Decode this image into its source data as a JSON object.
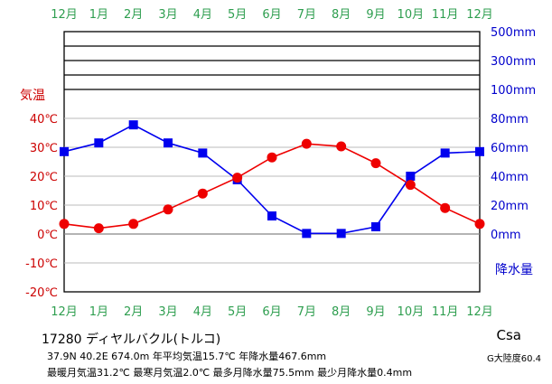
{
  "chart_data": {
    "type": "line",
    "categories": [
      "12月",
      "1月",
      "2月",
      "3月",
      "4月",
      "5月",
      "6月",
      "7月",
      "8月",
      "9月",
      "10月",
      "11月",
      "12月"
    ],
    "series": [
      {
        "name": "気温",
        "values": [
          3.5,
          2.0,
          3.5,
          8.5,
          14.0,
          19.5,
          26.5,
          31.2,
          30.3,
          24.5,
          17.0,
          9.0,
          3.5
        ],
        "color": "#ee0000"
      },
      {
        "name": "降水量",
        "values": [
          57.0,
          63.0,
          75.5,
          63.0,
          56.0,
          37.5,
          12.5,
          0.4,
          0.4,
          5.0,
          40.0,
          56.0,
          57.0
        ],
        "color": "#0000ee"
      }
    ],
    "temp_axis": {
      "label": "気温",
      "ticks": [
        "40℃",
        "30℃",
        "20℃",
        "10℃",
        "0℃",
        "-10℃",
        "-20℃"
      ],
      "ylim": [
        -20,
        40
      ]
    },
    "precip_axis": {
      "label": "降水量",
      "ticks": [
        "0mm",
        "20mm",
        "40mm",
        "60mm",
        "80mm",
        "100mm",
        "300mm",
        "500mm"
      ],
      "ylim": [
        0,
        100
      ]
    },
    "grid": true
  },
  "station": {
    "name": "17280 ディヤルバクル(トルコ)",
    "line1": "37.9N  40.2E  674.0m 年平均気温15.7℃  年降水量467.6mm",
    "line2": "最暖月気温31.2℃ 最寒月気温2.0℃ 最多月降水量75.5mm 最少月降水量0.4mm",
    "koppen": "Csa",
    "aridity": "G大陸度60.4"
  }
}
